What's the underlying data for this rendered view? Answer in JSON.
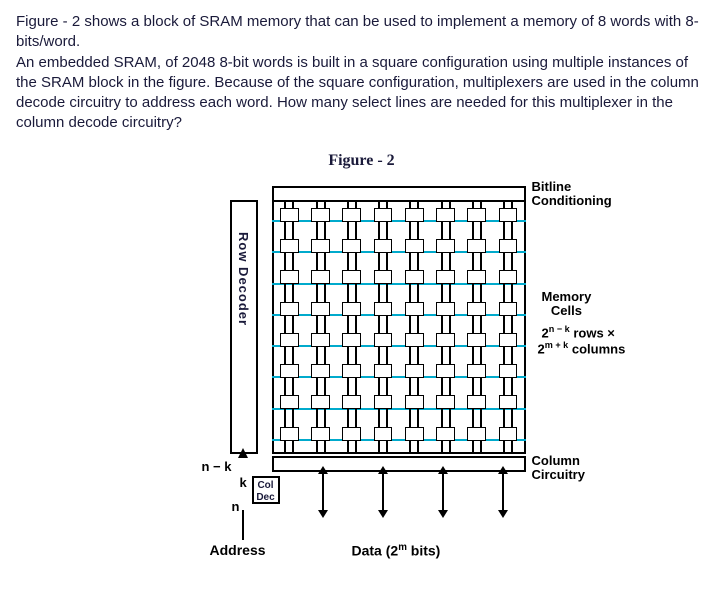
{
  "question": {
    "p1": "Figure - 2 shows a block of SRAM memory that can be used to implement a memory of 8 words with 8-bits/word.",
    "p2": "An embedded SRAM, of 2048 8-bit words is built in a square configuration using multiple instances of the SRAM block in the figure. Because of the square configuration, multiplexers are used in the column decode circuitry to address each word. How many select lines are needed for this multiplexer in the column decode circuitry?"
  },
  "figure": {
    "caption": "Figure - 2",
    "labels": {
      "bitline": "Bitline Conditioning",
      "memory": "Memory Cells",
      "rows_expr_html": "2<sup>n − k</sup> rows ×",
      "cols_expr_html": "2<sup>m + k</sup> columns",
      "row_decoder": "Row Decoder",
      "col_dec": "Col Dec",
      "column_circuitry": "Column Circuitry",
      "nk": "n − k",
      "k": "k",
      "n": "n",
      "address": "Address",
      "data_html": "Data (2<sup>m</sup> bits)"
    },
    "grid": {
      "rows": 8,
      "cols": 8
    },
    "colors": {
      "wordline": "#00aacc",
      "border": "#000000",
      "text": "#1a1a3a",
      "background": "#ffffff"
    }
  }
}
